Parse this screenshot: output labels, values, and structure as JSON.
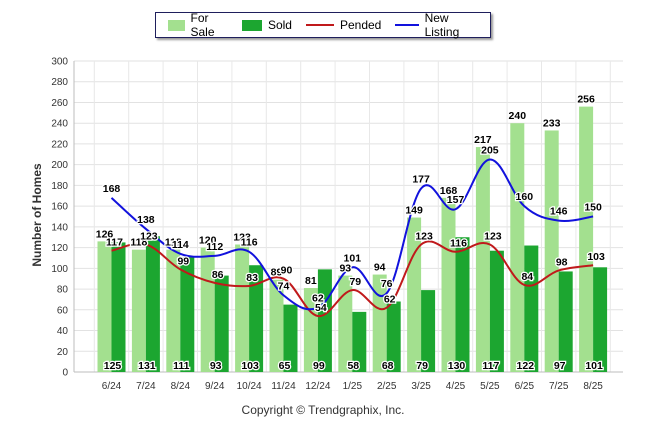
{
  "legend": {
    "for_sale": "For Sale",
    "sold": "Sold",
    "pended": "Pended",
    "new_listing": "New Listing"
  },
  "copyright": "Copyright © Trendgraphix, Inc.",
  "colors": {
    "for_sale": "#a3e08f",
    "sold": "#1ca630",
    "pended": "#c0191b",
    "new_listing": "#1212dd"
  },
  "chart_data": {
    "type": "bar",
    "title": "",
    "xlabel": "",
    "ylabel": "Number of Homes",
    "ylim": [
      0,
      300
    ],
    "yticks": [
      0,
      20,
      40,
      60,
      80,
      100,
      120,
      140,
      160,
      180,
      200,
      220,
      240,
      260,
      280,
      300
    ],
    "grid": true,
    "legend_position": "top",
    "categories": [
      "6/24",
      "7/24",
      "8/24",
      "9/24",
      "10/24",
      "11/24",
      "12/24",
      "1/25",
      "2/25",
      "3/25",
      "4/25",
      "5/25",
      "6/25",
      "7/25",
      "8/25"
    ],
    "series": [
      {
        "name": "For Sale",
        "kind": "bar",
        "values": [
          126,
          118,
          118,
          120,
          123,
          89,
          81,
          93,
          94,
          149,
          168,
          217,
          240,
          233,
          256
        ]
      },
      {
        "name": "Sold",
        "kind": "bar",
        "values": [
          125,
          131,
          111,
          93,
          103,
          65,
          99,
          58,
          68,
          79,
          130,
          117,
          122,
          97,
          101
        ]
      },
      {
        "name": "Pended",
        "kind": "line",
        "values": [
          117,
          123,
          99,
          86,
          83,
          90,
          54,
          79,
          62,
          123,
          116,
          123,
          84,
          98,
          103
        ]
      },
      {
        "name": "New Listing",
        "kind": "line",
        "values": [
          168,
          138,
          114,
          112,
          116,
          74,
          62,
          101,
          76,
          177,
          157,
          205,
          160,
          146,
          150
        ]
      }
    ]
  }
}
